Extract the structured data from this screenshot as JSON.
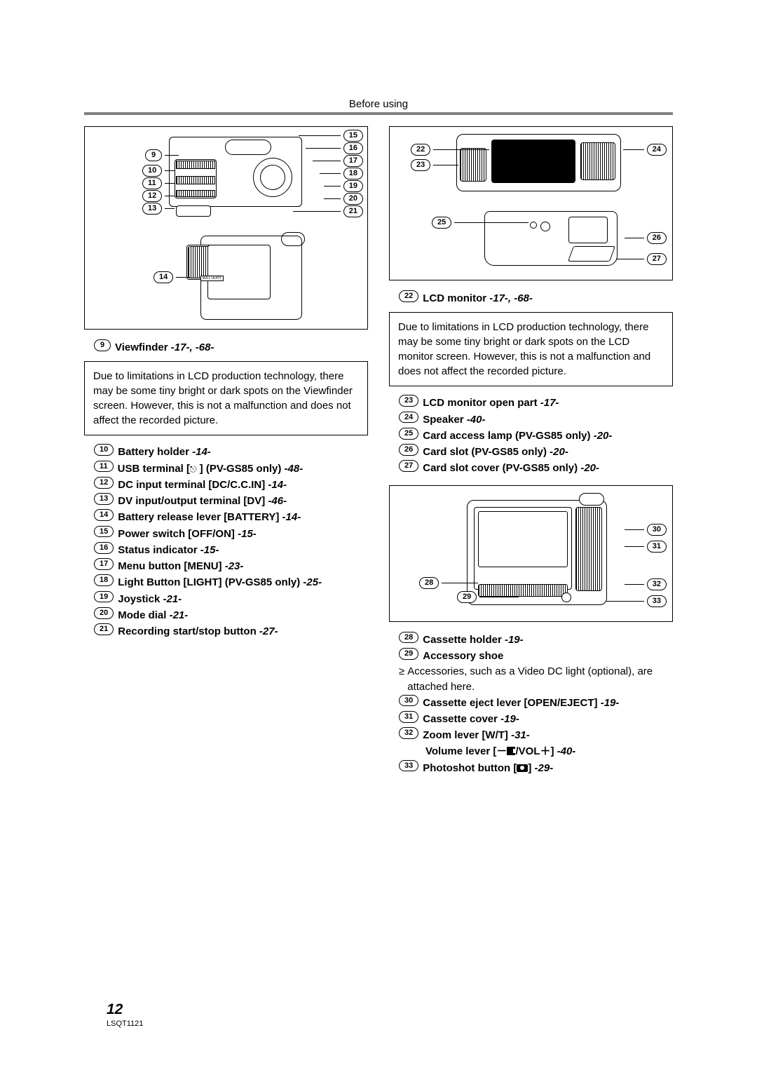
{
  "header": "Before using",
  "left": {
    "item9": {
      "num": "9",
      "label": "Viewfinder",
      "refs": "-17-, -68-"
    },
    "note": "Due to limitations in LCD production technology, there may be some tiny bright or dark spots on the Viewfinder screen. However, this is not a malfunction and does not affect the recorded picture.",
    "items": [
      {
        "num": "10",
        "label": "Battery holder",
        "refs": "-14-"
      },
      {
        "num": "11",
        "label": "USB terminal [",
        "tail": " ] (PV-GS85 only)",
        "refs": "-48-",
        "usb": true
      },
      {
        "num": "12",
        "label": "DC input terminal [DC/C.C.IN]",
        "refs": "-14-"
      },
      {
        "num": "13",
        "label": "DV input/output terminal [DV]",
        "refs": "-46-"
      },
      {
        "num": "14",
        "label": "Battery release lever [BATTERY]",
        "refs": "-14-"
      },
      {
        "num": "15",
        "label": "Power switch [OFF/ON]",
        "refs": "-15-"
      },
      {
        "num": "16",
        "label": "Status indicator",
        "refs": "-15-"
      },
      {
        "num": "17",
        "label": "Menu button [MENU]",
        "refs": "-23-"
      },
      {
        "num": "18",
        "label": "Light Button [LIGHT] (PV-GS85 only)",
        "refs": "-25-"
      },
      {
        "num": "19",
        "label": "Joystick",
        "refs": "-21-"
      },
      {
        "num": "20",
        "label": "Mode dial",
        "refs": "-21-"
      },
      {
        "num": "21",
        "label": "Recording start/stop button",
        "refs": "-27-"
      }
    ]
  },
  "right": {
    "item22": {
      "num": "22",
      "label": "LCD monitor",
      "refs": "-17-, -68-"
    },
    "note": "Due to limitations in LCD production technology, there may be some tiny bright or dark spots on the LCD monitor screen. However, this is not a malfunction and does not affect the recorded picture.",
    "itemsA": [
      {
        "num": "23",
        "label": "LCD monitor open part",
        "refs": "-17-"
      },
      {
        "num": "24",
        "label": "Speaker",
        "refs": "-40-"
      },
      {
        "num": "25",
        "label": "Card access lamp (PV-GS85 only)",
        "refs": "-20-"
      },
      {
        "num": "26",
        "label": "Card slot (PV-GS85 only)",
        "refs": "-20-"
      },
      {
        "num": "27",
        "label": "Card slot cover (PV-GS85 only)",
        "refs": "-20-"
      }
    ],
    "itemsB_28": {
      "num": "28",
      "label": "Cassette holder",
      "refs": "-19-"
    },
    "itemsB_29": {
      "num": "29",
      "label": "Accessory shoe"
    },
    "accessory_bullet": "Accessories, such as a Video DC light (optional), are attached here.",
    "itemsC": [
      {
        "num": "30",
        "label": "Cassette eject lever [OPEN/EJECT]",
        "refs": "-19-"
      },
      {
        "num": "31",
        "label": "Cassette cover",
        "refs": "-19-"
      }
    ],
    "item32a": {
      "num": "32",
      "label": "Zoom lever [W/T]",
      "refs": "-31-"
    },
    "item32b_pre": "Volume lever [－",
    "item32b_post": "/VOL＋]",
    "item32b_refs": "-40-",
    "item33_pre": {
      "num": "33",
      "label": "Photoshot button ["
    },
    "item33_post": "]",
    "item33_refs": "-29-"
  },
  "footer": {
    "page": "12",
    "code": "LSQT1121"
  },
  "diagram_labels": {
    "battery": "BATTERY"
  },
  "callouts_a": [
    "9",
    "10",
    "11",
    "12",
    "13",
    "14",
    "15",
    "16",
    "17",
    "18",
    "19",
    "20",
    "21"
  ],
  "callouts_b": [
    "22",
    "23",
    "24",
    "25",
    "26",
    "27"
  ],
  "callouts_c": [
    "28",
    "29",
    "30",
    "31",
    "32",
    "33"
  ]
}
